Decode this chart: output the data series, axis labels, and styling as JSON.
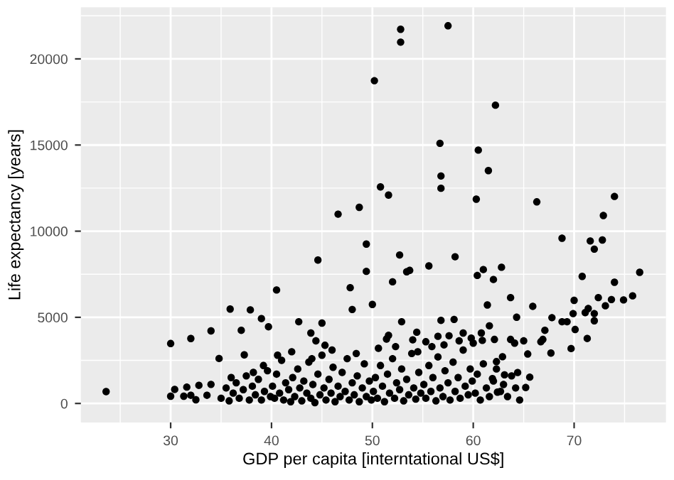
{
  "chart_data": {
    "type": "scatter",
    "xlabel": "GDP per capita [interntational US$]",
    "ylabel": "Life expectancy [years]",
    "xlim": [
      21.1,
      79.1
    ],
    "ylim": [
      -1100,
      23000
    ],
    "xticks": [
      30,
      40,
      50,
      60,
      70
    ],
    "yticks": [
      0,
      5000,
      10000,
      15000,
      20000
    ],
    "grid": true,
    "marker": "circle",
    "series": [
      {
        "color": "#000000",
        "x": [
          52.8,
          52.8,
          57.5,
          50.2,
          62.2,
          56.7,
          60.5,
          61.5,
          56.8,
          50.8,
          56.8,
          51.6,
          60.3,
          46.6,
          48.7,
          66.3,
          74.0,
          72.9,
          23.6,
          30.0,
          32.0,
          34.0,
          34.8,
          35.9,
          37.0,
          37.3,
          37.9,
          39.0,
          39.7,
          40.5,
          42.7,
          43.9,
          44.4,
          44.6,
          45.0,
          45.3,
          47.8,
          48.0,
          49.4,
          49.4,
          50.0,
          52.7,
          52.0,
          53.4,
          53.7,
          55.6,
          58.2,
          52.9,
          56.8,
          58.1,
          60.4,
          61.0,
          62.0,
          62.8,
          61.4,
          61.6,
          63.7,
          64.3,
          65.9,
          67.8,
          68.8,
          71.6,
          72.0,
          72.8,
          70.8,
          74.0,
          76.5,
          75.8,
          74.9,
          73.7,
          73.1,
          72.4,
          71.4,
          72.0,
          71.1,
          70.0,
          69.9,
          70.1,
          69.3,
          68.8,
          72.0,
          71.3,
          69.7,
          67.7,
          66.9,
          66.7,
          67.1,
          65.0,
          65.4,
          64.1,
          63.7,
          64.4,
          65.6,
          65.2,
          62.9,
          62.3,
          62.4,
          63.1,
          61.9,
          62.1,
          60.9,
          60.8,
          59.8,
          59.0,
          58.6,
          57.6,
          56.5,
          55.3,
          54.4,
          54.0,
          51.4,
          51.6,
          30.0,
          30.4,
          31.6,
          31.3,
          32.5,
          32.0,
          32.8,
          34.0,
          33.6,
          35.0,
          35.5,
          35.8,
          36.2,
          36.5,
          36.8,
          37.2,
          37.5,
          37.8,
          38.1,
          38.4,
          38.7,
          39.0,
          39.3,
          39.6,
          39.9,
          39.2,
          38.2,
          36.0,
          40.1,
          40.3,
          40.5,
          40.8,
          41.0,
          41.2,
          41.4,
          41.7,
          41.9,
          42.1,
          42.3,
          42.6,
          42.8,
          43.0,
          43.2,
          43.5,
          43.7,
          43.9,
          44.1,
          44.3,
          44.6,
          44.8,
          45.0,
          40.6,
          42.0,
          44.0,
          45.2,
          45.4,
          45.7,
          45.9,
          46.1,
          46.3,
          46.6,
          46.8,
          47.0,
          47.3,
          47.5,
          47.7,
          48.0,
          48.2,
          48.5,
          48.7,
          49.0,
          49.2,
          49.4,
          49.7,
          49.9,
          46.0,
          48.4,
          50.1,
          50.3,
          50.5,
          50.8,
          51.0,
          51.2,
          51.5,
          51.7,
          52.0,
          52.2,
          52.4,
          52.7,
          52.9,
          53.1,
          53.4,
          53.6,
          53.9,
          54.1,
          54.3,
          54.6,
          54.8,
          50.6,
          52.3,
          54.5,
          55.1,
          55.3,
          55.6,
          55.8,
          56.0,
          56.3,
          56.5,
          56.7,
          57.0,
          57.2,
          57.5,
          57.7,
          58.0,
          58.2,
          58.5,
          58.7,
          59.0,
          59.2,
          59.5,
          59.7,
          59.9,
          60.2,
          60.4,
          60.7,
          61.0,
          61.3,
          61.6,
          62.0,
          62.3,
          62.7,
          63.0,
          63.4,
          63.8,
          64.2,
          64.6,
          57.1,
          55.9,
          60.0
        ],
        "values": [
          21717,
          20972,
          21921,
          18735,
          17312,
          15099,
          14704,
          13518,
          13202,
          12569,
          12490,
          12095,
          11858,
          10988,
          11383,
          11700,
          12016,
          10909,
          688,
          3478,
          3770,
          4213,
          2609,
          5478,
          4245,
          2822,
          5431,
          4925,
          4451,
          6585,
          4743,
          4087,
          3636,
          8324,
          4664,
          3375,
          6719,
          5455,
          9249,
          7668,
          5747,
          8617,
          7059,
          7644,
          7723,
          7984,
          8514,
          4743,
          4822,
          4877,
          7431,
          7771,
          7194,
          7905,
          5715,
          4506,
          6142,
          5004,
          5636,
          4980,
          9589,
          9431,
          8957,
          9486,
          7376,
          7036,
          7613,
          6245,
          6008,
          6032,
          5668,
          6142,
          5510,
          5217,
          5273,
          5984,
          5217,
          4292,
          4743,
          4743,
          4798,
          3771,
          3186,
          2925,
          3715,
          3581,
          4245,
          3636,
          2870,
          3502,
          3715,
          1794,
          1526,
          925,
          2711,
          2427,
          656,
          1660,
          1447,
          3715,
          3660,
          4087,
          3794,
          4087,
          3636,
          3929,
          3897,
          3581,
          4134,
          3692,
          3739,
          3953,
          420,
          814,
          949,
          420,
          213,
          474,
          1051,
          1107,
          474,
          300,
          900,
          150,
          600,
          1200,
          300,
          800,
          1600,
          200,
          1000,
          500,
          1400,
          200,
          700,
          1900,
          400,
          2200,
          1800,
          1500,
          1000,
          300,
          1700,
          600,
          2500,
          200,
          1200,
          800,
          100,
          1500,
          400,
          2000,
          900,
          150,
          1300,
          600,
          2400,
          300,
          1100,
          50,
          1700,
          500,
          2800,
          2800,
          3000,
          2600,
          900,
          200,
          1400,
          600,
          2100,
          100,
          1000,
          400,
          1800,
          700,
          2600,
          200,
          1200,
          500,
          1600,
          100,
          900,
          2300,
          400,
          1300,
          200,
          3100,
          2900,
          700,
          1500,
          300,
          2200,
          1000,
          100,
          1700,
          600,
          2600,
          300,
          1200,
          800,
          2000,
          150,
          1400,
          500,
          2900,
          900,
          250,
          1800,
          600,
          3200,
          3300,
          3000,
          1100,
          300,
          2200,
          700,
          1500,
          150,
          2700,
          900,
          400,
          1900,
          1200,
          200,
          2400,
          700,
          1500,
          300,
          3100,
          1000,
          500,
          2000,
          1300,
          600,
          1700,
          200,
          2300,
          900,
          400,
          1300,
          2000,
          700,
          1100,
          400,
          1600,
          900,
          200,
          3400,
          3300,
          3500
        ]
      }
    ]
  }
}
